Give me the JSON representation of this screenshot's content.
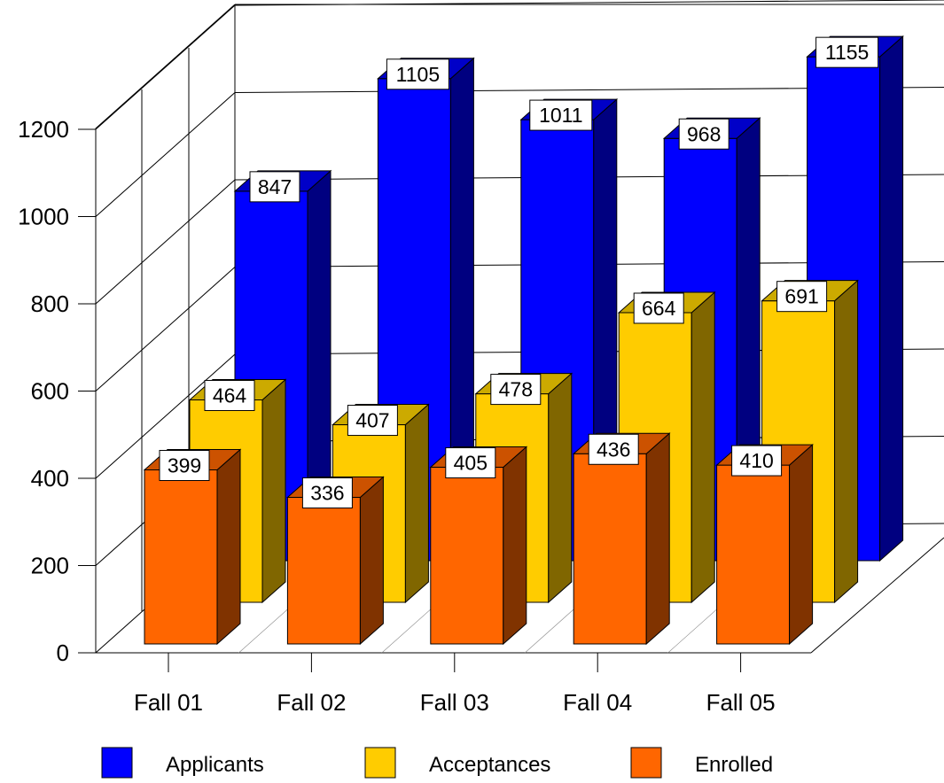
{
  "chart_data": {
    "type": "bar",
    "categories": [
      "Fall 01",
      "Fall 02",
      "Fall 03",
      "Fall 04",
      "Fall 05"
    ],
    "series": [
      {
        "name": "Applicants",
        "values": [
          847,
          1105,
          1011,
          968,
          1155
        ],
        "color": "#0000ff",
        "top_color": "#0000c8",
        "side_color": "#000080"
      },
      {
        "name": "Acceptances",
        "values": [
          464,
          407,
          478,
          664,
          691
        ],
        "color": "#ffcc00",
        "top_color": "#ccaa00",
        "side_color": "#806600"
      },
      {
        "name": "Enrolled",
        "values": [
          399,
          336,
          405,
          436,
          410
        ],
        "color": "#ff6600",
        "top_color": "#cc5200",
        "side_color": "#803300"
      }
    ],
    "y_ticks": [
      "0",
      "200",
      "400",
      "600",
      "800",
      "1000",
      "1200"
    ],
    "ylim": [
      0,
      1200
    ],
    "grid": true,
    "legend_position": "bottom",
    "title": "",
    "xlabel": "",
    "ylabel": ""
  }
}
